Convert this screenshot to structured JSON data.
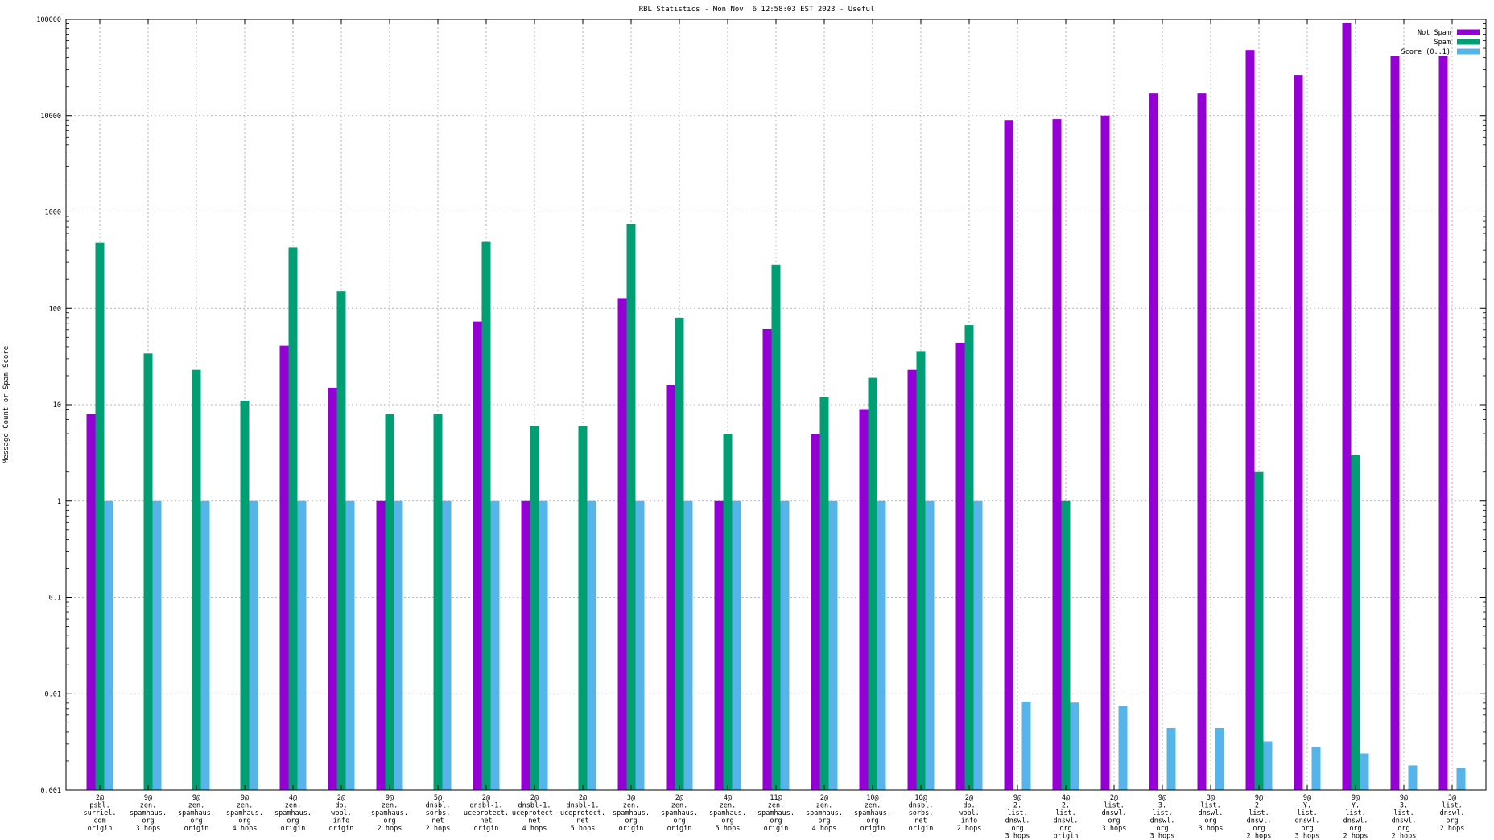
{
  "chart_data": {
    "type": "bar",
    "title": "RBL Statistics - Mon Nov  6 12:58:03 EST 2023 - Useful",
    "xlabel": "",
    "ylabel": "Message Count or Spam Score",
    "yscale": "log",
    "ylim": [
      0.001,
      100000
    ],
    "yticks": [
      "0.001",
      "0.01",
      "0.1",
      "1",
      "10",
      "100",
      "1000",
      "10000",
      "100000"
    ],
    "grid": true,
    "legend_position": "top-right",
    "categories": [
      [
        "2@",
        "psbl.",
        "surriel.",
        "com",
        "origin"
      ],
      [
        "9@",
        "zen.",
        "spamhaus.",
        "org",
        "3 hops"
      ],
      [
        "9@",
        "zen.",
        "spamhaus.",
        "org",
        "origin"
      ],
      [
        "9@",
        "zen.",
        "spamhaus.",
        "org",
        "4 hops"
      ],
      [
        "4@",
        "zen.",
        "spamhaus.",
        "org",
        "origin"
      ],
      [
        "2@",
        "db.",
        "wpbl.",
        "info",
        "origin"
      ],
      [
        "9@",
        "zen.",
        "spamhaus.",
        "org",
        "2 hops"
      ],
      [
        "5@",
        "dnsbl.",
        "sorbs.",
        "net",
        "2 hops"
      ],
      [
        "2@",
        "dnsbl-1.",
        "uceprotect.",
        "net",
        "origin"
      ],
      [
        "2@",
        "dnsbl-1.",
        "uceprotect.",
        "net",
        "4 hops"
      ],
      [
        "2@",
        "dnsbl-1.",
        "uceprotect.",
        "net",
        "5 hops"
      ],
      [
        "3@",
        "zen.",
        "spamhaus.",
        "org",
        "origin"
      ],
      [
        "2@",
        "zen.",
        "spamhaus.",
        "org",
        "origin"
      ],
      [
        "4@",
        "zen.",
        "spamhaus.",
        "org",
        "5 hops"
      ],
      [
        "11@",
        "zen.",
        "spamhaus.",
        "org",
        "origin"
      ],
      [
        "2@",
        "zen.",
        "spamhaus.",
        "org",
        "4 hops"
      ],
      [
        "10@",
        "zen.",
        "spamhaus.",
        "org",
        "origin"
      ],
      [
        "10@",
        "dnsbl.",
        "sorbs.",
        "net",
        "origin"
      ],
      [
        "2@",
        "db.",
        "wpbl.",
        "info",
        "2 hops"
      ],
      [
        "9@",
        "2.",
        "list.",
        "dnswl.",
        "org",
        "3 hops"
      ],
      [
        "4@",
        "2.",
        "list.",
        "dnswl.",
        "org",
        "origin"
      ],
      [
        "2@",
        "list.",
        "dnswl.",
        "org",
        "3 hops"
      ],
      [
        "9@",
        "3.",
        "list.",
        "dnswl.",
        "org",
        "3 hops"
      ],
      [
        "3@",
        "list.",
        "dnswl.",
        "org",
        "3 hops"
      ],
      [
        "9@",
        "2.",
        "list.",
        "dnswl.",
        "org",
        "2 hops"
      ],
      [
        "9@",
        "Y.",
        "list.",
        "dnswl.",
        "org",
        "3 hops"
      ],
      [
        "9@",
        "Y.",
        "list.",
        "dnswl.",
        "org",
        "2 hops"
      ],
      [
        "9@",
        "3.",
        "list.",
        "dnswl.",
        "org",
        "2 hops"
      ],
      [
        "3@",
        "list.",
        "dnswl.",
        "org",
        "2 hops"
      ]
    ],
    "series": [
      {
        "name": "Not Spam",
        "color": "#9400d3",
        "values": [
          8,
          null,
          null,
          null,
          41,
          15,
          1,
          null,
          73,
          1,
          null,
          128,
          16,
          1,
          61,
          5,
          9,
          23,
          44,
          9000,
          9200,
          10000,
          17000,
          17000,
          48000,
          26500,
          92000,
          42000,
          42000
        ]
      },
      {
        "name": "Spam",
        "color": "#009e73",
        "values": [
          480,
          34,
          23,
          11,
          430,
          150,
          8,
          8,
          490,
          6,
          6,
          750,
          80,
          5,
          285,
          12,
          19,
          36,
          67,
          null,
          1,
          null,
          null,
          null,
          2,
          null,
          3,
          null,
          null
        ]
      },
      {
        "name": "Score (0..1)",
        "color": "#56b4e9",
        "values": [
          1,
          1,
          1,
          1,
          1,
          1,
          1,
          1,
          1,
          1,
          1,
          1,
          1,
          1,
          1,
          1,
          1,
          1,
          1,
          0.0083,
          0.0081,
          0.0074,
          0.0044,
          0.0044,
          0.0032,
          0.0028,
          0.0024,
          0.0018,
          0.0017
        ]
      }
    ]
  }
}
